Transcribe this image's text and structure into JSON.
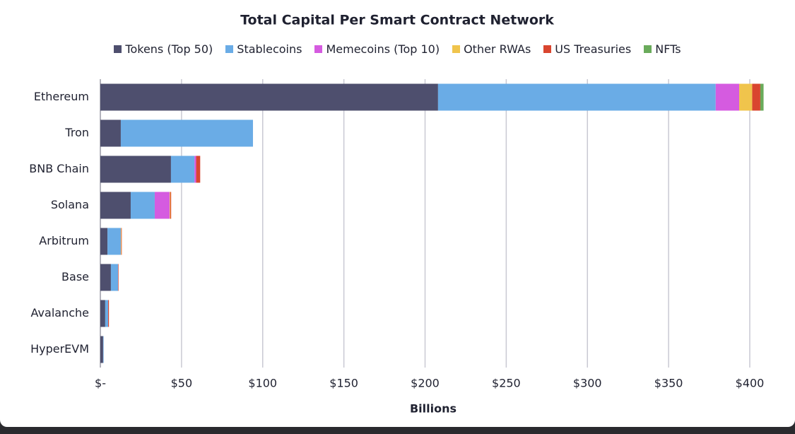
{
  "chart_data": {
    "type": "stacked-bar-horizontal",
    "title": "Total Capital Per Smart Contract Network",
    "categories": [
      "Ethereum",
      "Tron",
      "BNB Chain",
      "Solana",
      "Arbitrum",
      "Base",
      "Avalanche",
      "HyperEVM"
    ],
    "series": [
      {
        "name": "Tokens (Top 50)",
        "color": "#4e4f6e",
        "values": [
          208,
          12.6,
          43.5,
          18.7,
          4.4,
          6.5,
          3,
          1.7
        ]
      },
      {
        "name": "Stablecoins",
        "color": "#6aace6",
        "values": [
          171,
          81.4,
          14.5,
          14.8,
          8.2,
          4.4,
          1.8,
          0.3
        ]
      },
      {
        "name": "Memecoins (Top 10)",
        "color": "#d55be0",
        "values": [
          14.5,
          0,
          1,
          9.2,
          0,
          0,
          0,
          0
        ]
      },
      {
        "name": "Other RWAs",
        "color": "#f0c44c",
        "values": [
          8,
          0,
          0,
          0.4,
          0.3,
          0,
          0,
          0
        ]
      },
      {
        "name": "US Treasuries",
        "color": "#d9452f",
        "values": [
          5,
          0,
          2.5,
          0.5,
          0.3,
          0.3,
          0.5,
          0
        ]
      },
      {
        "name": "NFTs",
        "color": "#6aab5b",
        "values": [
          2,
          0,
          0,
          0,
          0,
          0,
          0,
          0
        ]
      }
    ],
    "xlim": [
      0,
      400
    ],
    "xticks": [
      {
        "value": 0,
        "label": "$-"
      },
      {
        "value": 50,
        "label": "$50"
      },
      {
        "value": 100,
        "label": "$100"
      },
      {
        "value": 150,
        "label": "$150"
      },
      {
        "value": 200,
        "label": "$200"
      },
      {
        "value": 250,
        "label": "$250"
      },
      {
        "value": 300,
        "label": "$300"
      },
      {
        "value": 350,
        "label": "$350"
      },
      {
        "value": 400,
        "label": "$400"
      }
    ],
    "xlabel": "Billions",
    "grid": true
  }
}
